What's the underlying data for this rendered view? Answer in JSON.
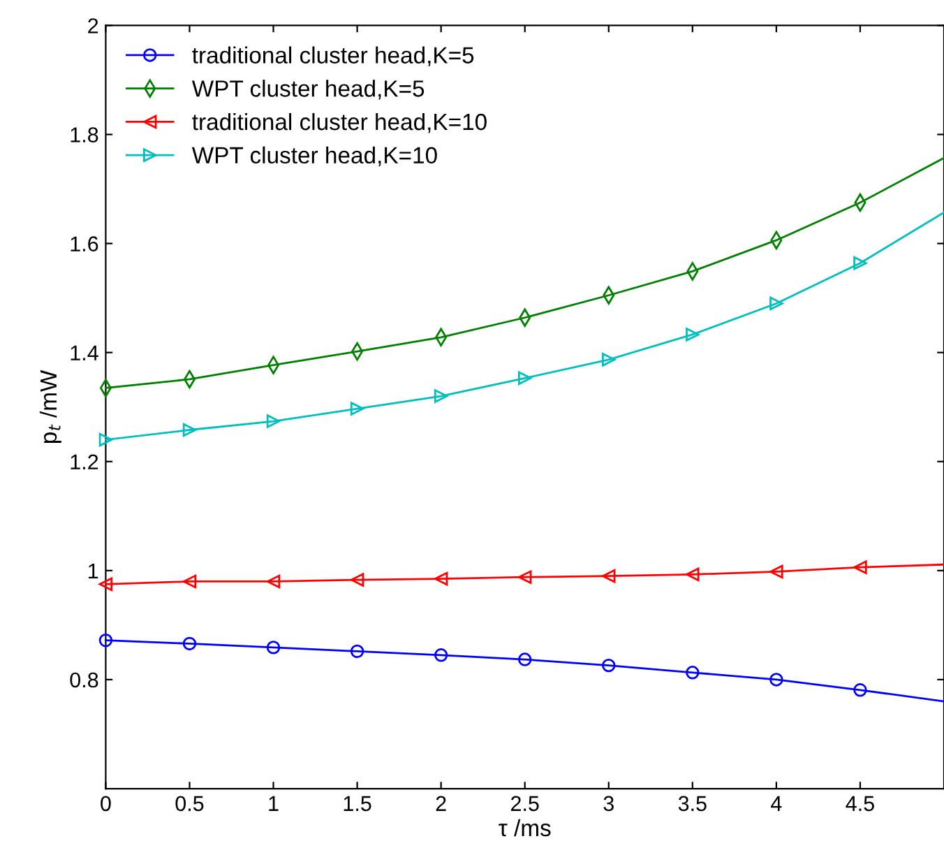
{
  "chart_data": {
    "type": "line",
    "xlabel": "τ /ms",
    "ylabel": "p$_{t}$ /mW",
    "x": [
      0,
      0.5,
      1,
      1.5,
      2,
      2.5,
      3,
      3.5,
      4,
      4.5,
      5
    ],
    "series": [
      {
        "name": "traditional cluster head,K=5",
        "color": "#0000ff",
        "marker": "circle",
        "values": [
          0.872,
          0.866,
          0.859,
          0.852,
          0.845,
          0.837,
          0.826,
          0.813,
          0.8,
          0.781,
          0.76
        ]
      },
      {
        "name": "WPT cluster head,K=5",
        "color": "#008000",
        "marker": "diamond",
        "values": [
          1.335,
          1.351,
          1.377,
          1.402,
          1.428,
          1.464,
          1.505,
          1.549,
          1.606,
          1.675,
          1.757
        ]
      },
      {
        "name": "traditional cluster head,K=10",
        "color": "#ff0000",
        "marker": "triangle-left",
        "values": [
          0.975,
          0.98,
          0.98,
          0.983,
          0.985,
          0.988,
          0.99,
          0.993,
          0.998,
          1.006,
          1.011
        ]
      },
      {
        "name": "WPT cluster head,K=10",
        "color": "#00bfbf",
        "marker": "triangle-right",
        "values": [
          1.24,
          1.258,
          1.274,
          1.297,
          1.32,
          1.353,
          1.387,
          1.433,
          1.49,
          1.564,
          1.657
        ]
      }
    ],
    "xlim": [
      0,
      5
    ],
    "xticks": [
      0,
      0.5,
      1,
      1.5,
      2,
      2.5,
      3,
      3.5,
      4,
      4.5
    ],
    "ylim": [
      0.6,
      2
    ],
    "yticks": [
      0.8,
      1,
      1.2,
      1.4,
      1.6,
      1.8,
      2
    ],
    "legend": "top left",
    "grid": false,
    "line_style": "solid"
  }
}
